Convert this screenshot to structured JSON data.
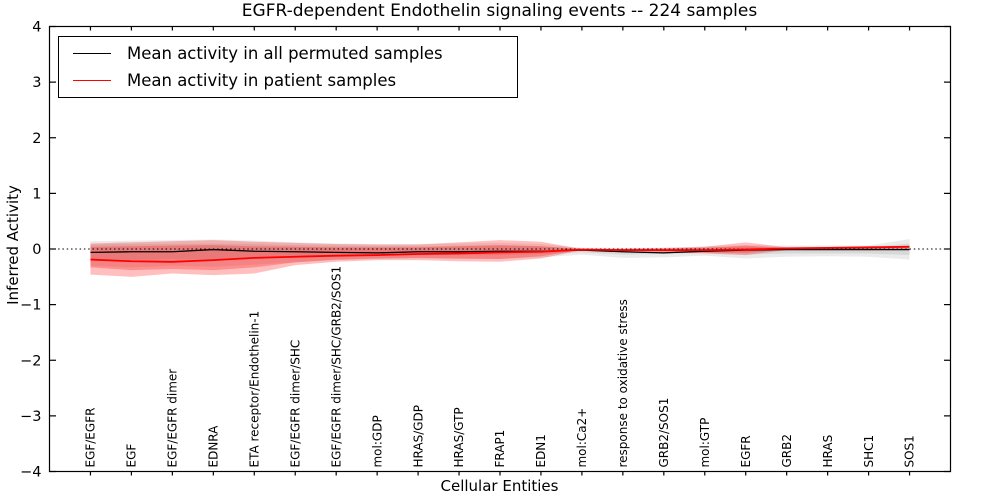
{
  "figure": {
    "title": "EGFR-dependent Endothelin signaling events -- 224 samples",
    "background": "#ffffff"
  },
  "legend": {
    "position": "upper left",
    "items": [
      {
        "label": "Mean activity in all permuted samples",
        "color": "#000000"
      },
      {
        "label": "Mean activity in patient samples",
        "color": "#ff0000"
      }
    ]
  },
  "chart_data": {
    "type": "line",
    "title": "EGFR-dependent Endothelin signaling events -- 224 samples",
    "xlabel": "Cellular Entities",
    "ylabel": "Inferred Activity",
    "xlim": [
      -1,
      21
    ],
    "ylim": [
      -4,
      4
    ],
    "grid": false,
    "zero_line": {
      "style": "dotted",
      "value": 0,
      "color": "#000000"
    },
    "yticks": [
      {
        "value": 4,
        "label": "4"
      },
      {
        "value": 3,
        "label": "3"
      },
      {
        "value": 2,
        "label": "2"
      },
      {
        "value": 1,
        "label": "1"
      },
      {
        "value": 0,
        "label": "0"
      },
      {
        "value": -1,
        "label": "−1"
      },
      {
        "value": -2,
        "label": "−2"
      },
      {
        "value": -3,
        "label": "−3"
      },
      {
        "value": -4,
        "label": "−4"
      }
    ],
    "categories": [
      "EGF/EGFR",
      "EGF",
      "EGF/EGFR dimer",
      "EDNRA",
      "ETA receptor/Endothelin-1",
      "EGF/EGFR dimer/SHC",
      "EGF/EGFR dimer/SHC/GRB2/SOS1",
      "mol:GDP",
      "HRAS/GDP",
      "HRAS/GTP",
      "FRAP1",
      "EDN1",
      "mol:Ca2+",
      "response to oxidative stress",
      "GRB2/SOS1",
      "mol:GTP",
      "EGFR",
      "GRB2",
      "HRAS",
      "SHC1",
      "SOS1"
    ],
    "series": [
      {
        "name": "Mean activity in all permuted samples",
        "color": "#000000",
        "width": 1.3,
        "values": [
          -0.06,
          -0.05,
          -0.05,
          -0.01,
          -0.04,
          -0.05,
          -0.06,
          -0.07,
          -0.05,
          -0.05,
          -0.04,
          -0.04,
          -0.02,
          -0.05,
          -0.07,
          -0.04,
          -0.02,
          -0.01,
          -0.01,
          -0.01,
          -0.01
        ]
      },
      {
        "name": "Mean activity in patient samples",
        "color": "#ff0000",
        "width": 1.8,
        "values": [
          -0.19,
          -0.22,
          -0.23,
          -0.2,
          -0.16,
          -0.14,
          -0.12,
          -0.11,
          -0.09,
          -0.08,
          -0.06,
          -0.05,
          -0.01,
          -0.02,
          -0.02,
          -0.02,
          -0.01,
          0.01,
          0.02,
          0.03,
          0.04
        ]
      }
    ],
    "bands": [
      {
        "name": "permuted-band-outer",
        "color": "#000000",
        "alpha": 0.08,
        "top": [
          0.14,
          0.15,
          0.16,
          0.17,
          0.15,
          0.12,
          0.1,
          0.09,
          0.09,
          0.1,
          0.11,
          0.09,
          0.02,
          0.01,
          0.01,
          0.05,
          0.07,
          0.06,
          0.06,
          0.06,
          0.18
        ],
        "bottom": [
          -0.3,
          -0.33,
          -0.3,
          -0.32,
          -0.28,
          -0.24,
          -0.2,
          -0.18,
          -0.17,
          -0.18,
          -0.18,
          -0.15,
          -0.1,
          -0.16,
          -0.15,
          -0.12,
          -0.17,
          -0.14,
          -0.13,
          -0.14,
          -0.19
        ]
      },
      {
        "name": "permuted-band-inner",
        "color": "#000000",
        "alpha": 0.08,
        "top": [
          0.08,
          0.09,
          0.09,
          0.1,
          0.09,
          0.07,
          0.06,
          0.05,
          0.05,
          0.06,
          0.06,
          0.05,
          0.01,
          0.0,
          0.0,
          0.03,
          0.04,
          0.03,
          0.03,
          0.03,
          0.1
        ],
        "bottom": [
          -0.18,
          -0.2,
          -0.18,
          -0.19,
          -0.17,
          -0.15,
          -0.12,
          -0.11,
          -0.1,
          -0.11,
          -0.11,
          -0.09,
          -0.06,
          -0.1,
          -0.09,
          -0.07,
          -0.1,
          -0.08,
          -0.08,
          -0.08,
          -0.11
        ]
      },
      {
        "name": "patient-band-outer",
        "color": "#ff0000",
        "alpha": 0.25,
        "top": [
          0.1,
          0.12,
          0.14,
          0.16,
          0.13,
          0.11,
          0.09,
          0.08,
          0.08,
          0.12,
          0.16,
          0.13,
          0.0,
          0.01,
          0.02,
          0.04,
          0.12,
          0.03,
          0.03,
          0.04,
          0.06
        ],
        "bottom": [
          -0.46,
          -0.5,
          -0.44,
          -0.47,
          -0.44,
          -0.29,
          -0.23,
          -0.2,
          -0.2,
          -0.22,
          -0.23,
          -0.17,
          -0.02,
          -0.04,
          -0.06,
          -0.08,
          -0.11,
          -0.02,
          -0.01,
          0.0,
          0.01
        ]
      },
      {
        "name": "patient-band-inner",
        "color": "#ff0000",
        "alpha": 0.25,
        "top": [
          0.04,
          0.05,
          0.06,
          0.07,
          0.05,
          0.04,
          0.03,
          0.03,
          0.03,
          0.05,
          0.07,
          0.05,
          0.0,
          0.0,
          0.01,
          0.02,
          0.06,
          0.02,
          0.02,
          0.03,
          0.04
        ],
        "bottom": [
          -0.33,
          -0.38,
          -0.36,
          -0.38,
          -0.33,
          -0.24,
          -0.19,
          -0.17,
          -0.16,
          -0.17,
          -0.18,
          -0.13,
          -0.01,
          -0.03,
          -0.04,
          -0.06,
          -0.07,
          -0.01,
          0.0,
          0.01,
          0.02
        ]
      }
    ]
  }
}
